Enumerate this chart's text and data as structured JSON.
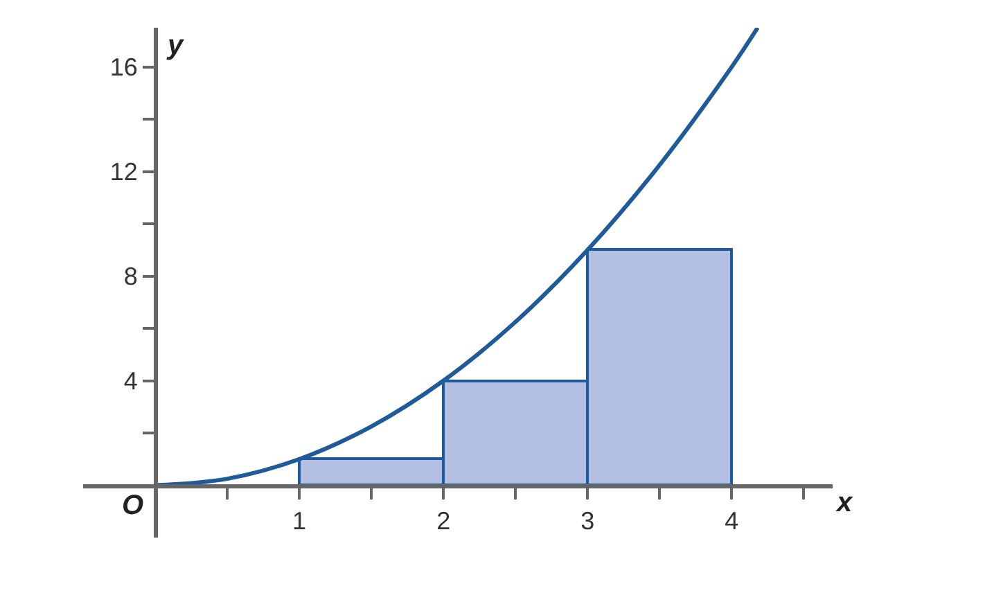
{
  "chart_data": {
    "type": "histogram",
    "xlabel": "x",
    "ylabel": "y",
    "bins": [
      1,
      2,
      3,
      4
    ],
    "values": [
      1,
      4,
      9
    ],
    "color": "#b3c0e3",
    "series": [
      {
        "type": "line",
        "color": "#1f5a9a",
        "x": [
          0,
          0.5,
          1,
          1.5,
          2,
          2.5,
          3,
          3.5,
          4,
          4.18
        ],
        "values": [
          0,
          0.25,
          1,
          2.25,
          4,
          6.25,
          9,
          12.25,
          16,
          17.5
        ]
      }
    ],
    "xlim": [
      -0.5,
      4.7
    ],
    "ylim": [
      -2,
      17.5
    ],
    "xticks": [
      {
        "value": 0.5,
        "label": null
      },
      1,
      {
        "value": 1.5,
        "label": null
      },
      2,
      {
        "value": 2.5,
        "label": null
      },
      3,
      {
        "value": 3.5,
        "label": null
      },
      4,
      {
        "value": 4.5,
        "label": null
      }
    ],
    "yticks": [
      {
        "value": 2,
        "label": null
      },
      4,
      {
        "value": 6,
        "label": null
      },
      8,
      {
        "value": 10,
        "label": null
      },
      12,
      {
        "value": 14,
        "label": null
      },
      16
    ],
    "annotations": [
      {
        "text": "O",
        "x": 0,
        "y": 0
      }
    ],
    "legend": false,
    "marker": "none",
    "line_style": "solid"
  }
}
